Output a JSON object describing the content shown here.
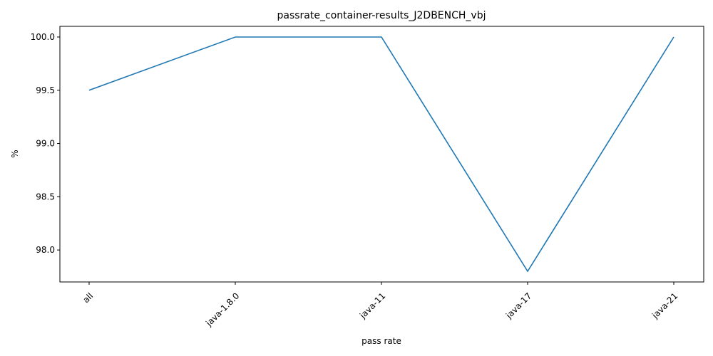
{
  "chart_data": {
    "type": "line",
    "title": "passrate_container-results_J2DBENCH_vbj",
    "xlabel": "pass rate",
    "ylabel": "%",
    "categories": [
      "all",
      "java-1.8.0",
      "java-11",
      "java-17",
      "java-21"
    ],
    "series": [
      {
        "values": [
          99.5,
          100.0,
          100.0,
          97.8,
          100.0
        ],
        "color": "#1f77b4"
      }
    ],
    "yticks": [
      "98.0",
      "98.5",
      "99.0",
      "99.5",
      "100.0"
    ],
    "ylim": [
      97.7,
      100.1
    ],
    "grid": false,
    "x_tick_rotation_deg": 45
  }
}
